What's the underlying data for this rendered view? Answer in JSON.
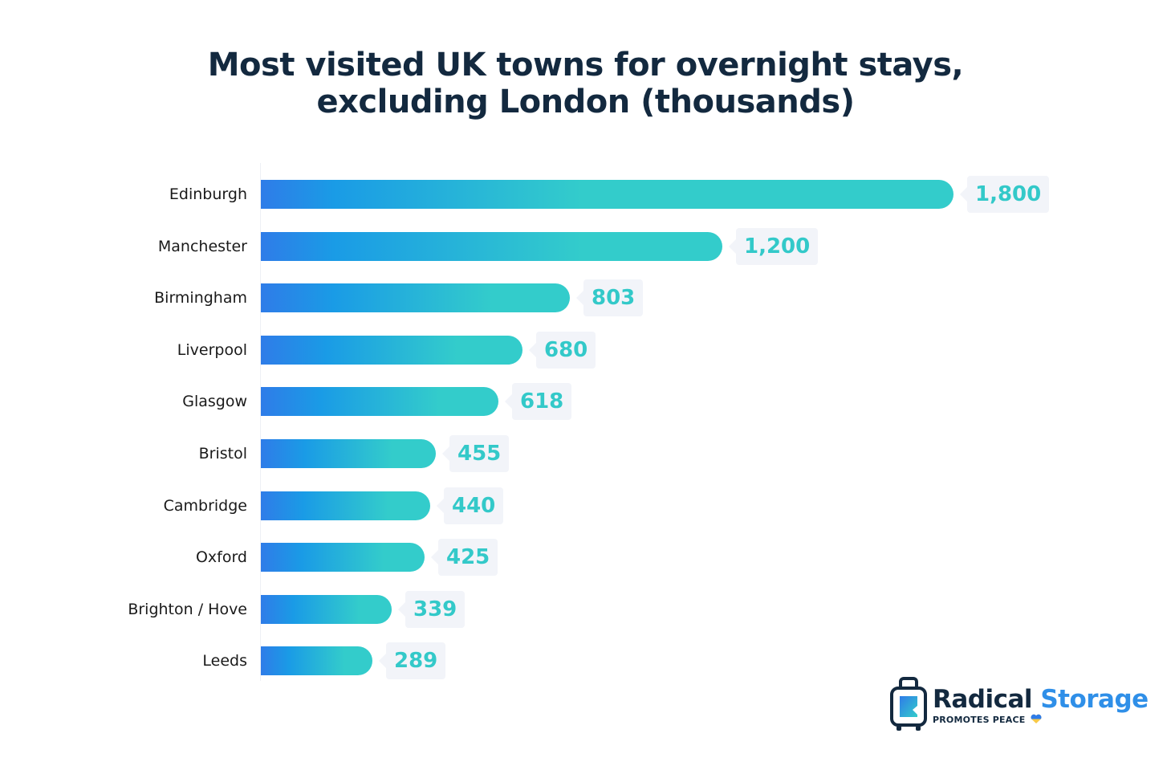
{
  "title_line1": "Most visited UK towns for overnight stays,",
  "title_line2": "excluding London (thousands)",
  "chart_data": {
    "type": "bar",
    "orientation": "horizontal",
    "title": "Most visited UK towns for overnight stays, excluding London (thousands)",
    "xlabel": "",
    "ylabel": "",
    "categories": [
      "Edinburgh",
      "Manchester",
      "Birmingham",
      "Liverpool",
      "Glasgow",
      "Bristol",
      "Cambridge",
      "Oxford",
      "Brighton / Hove",
      "Leeds"
    ],
    "values": [
      1800,
      1200,
      803,
      680,
      618,
      455,
      440,
      425,
      339,
      289
    ],
    "value_labels": [
      "1,800",
      "1,200",
      "803",
      "680",
      "618",
      "455",
      "440",
      "425",
      "339",
      "289"
    ],
    "xlim": [
      0,
      1800
    ],
    "grid": false,
    "legend": "none",
    "colors": {
      "gradient_start": "#2f7ce8",
      "gradient_mid": "#1a9be6",
      "gradient_end": "#33cccb",
      "value_text": "#33c9c9",
      "value_bg": "#f2f4f9",
      "title": "#13293f"
    }
  },
  "logo": {
    "word1": "Radical",
    "word2": "Storage",
    "tagline": "PROMOTES PEACE"
  }
}
